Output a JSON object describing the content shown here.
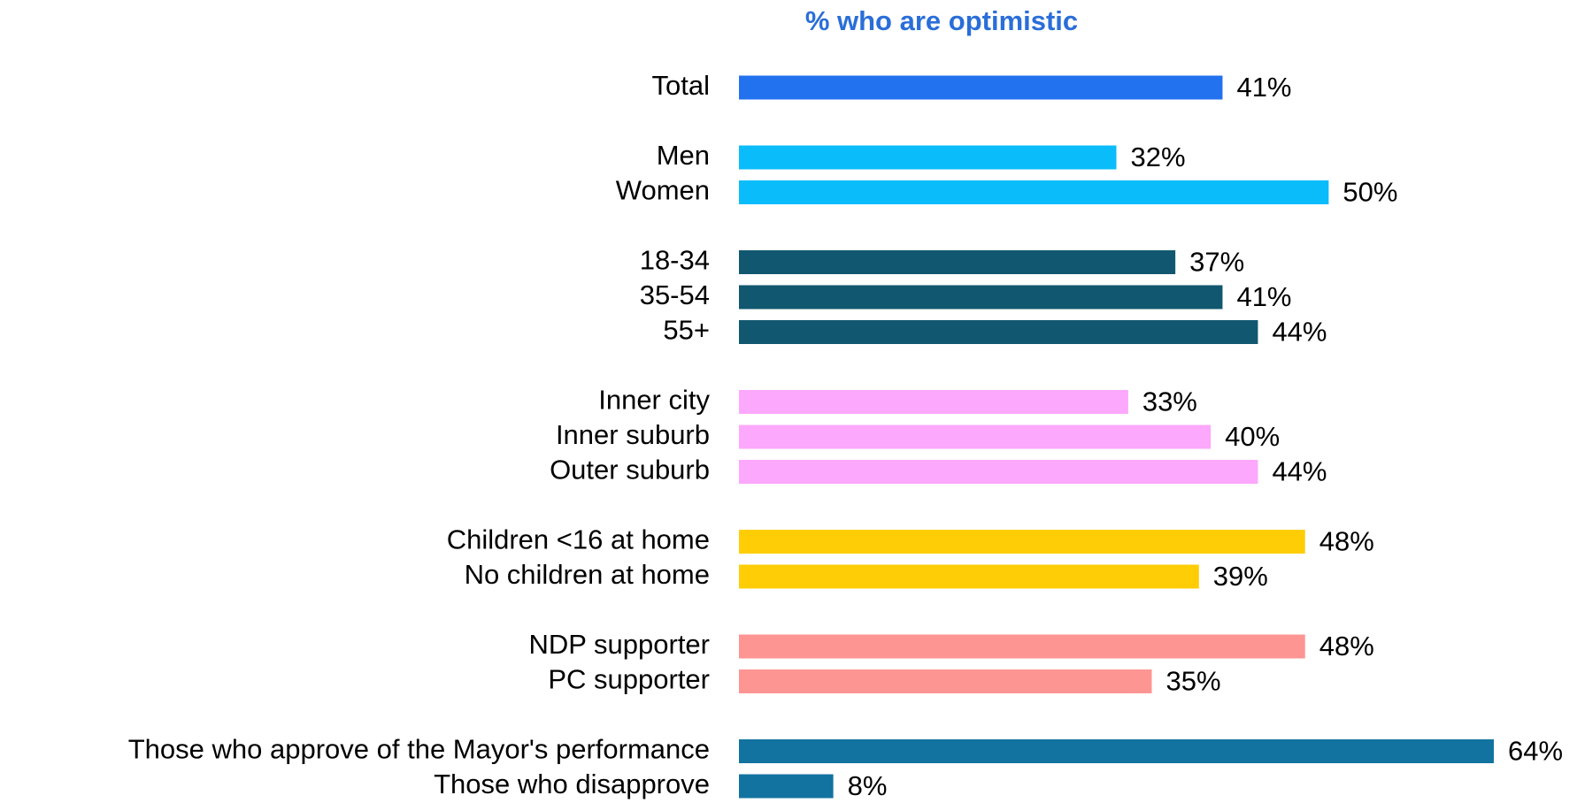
{
  "chart_data": {
    "type": "bar",
    "orientation": "horizontal",
    "title": "% who are optimistic",
    "categories": [
      "Total",
      "Men",
      "Women",
      "18-34",
      "35-54",
      "55+",
      "Inner city",
      "Inner suburb",
      "Outer suburb",
      "Children <16 at home",
      "No children at home",
      "NDP supporter",
      "PC supporter",
      "Those who approve of the Mayor's performance",
      "Those who disapprove"
    ],
    "values": [
      41,
      32,
      50,
      37,
      41,
      44,
      33,
      40,
      44,
      48,
      39,
      48,
      35,
      64,
      8
    ],
    "value_labels": [
      "41%",
      "32%",
      "50%",
      "37%",
      "41%",
      "44%",
      "33%",
      "40%",
      "44%",
      "48%",
      "39%",
      "48%",
      "35%",
      "64%",
      "8%"
    ],
    "colors": [
      "#2272f0",
      "#0abcfa",
      "#0abcfa",
      "#11576f",
      "#11576f",
      "#11576f",
      "#fca8fc",
      "#fca8fc",
      "#fca8fc",
      "#fecd05",
      "#fecd05",
      "#fd9592",
      "#fd9592",
      "#1273a0",
      "#1273a0"
    ]
  }
}
